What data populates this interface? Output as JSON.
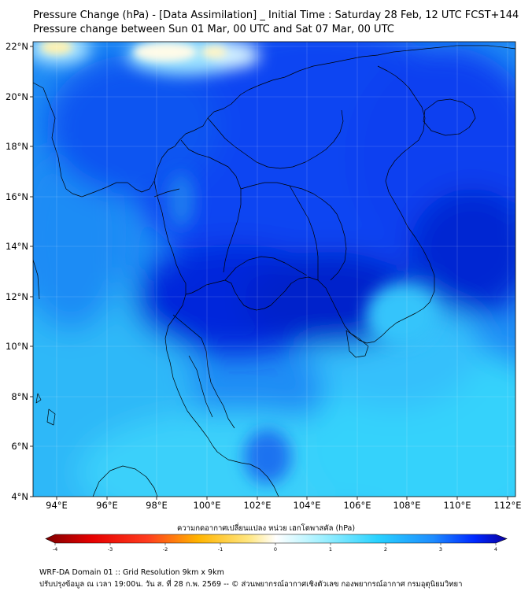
{
  "header": {
    "title_line1": "Pressure Change (hPa) - [Data Assimilation] _ Initial Time : Saturday 28 Feb, 12 UTC FCST+144",
    "title_line2": "Pressure change between Sun 01 Mar, 00 UTC and Sat 07 Mar, 00 UTC"
  },
  "map": {
    "lat_labels": [
      "22°N",
      "20°N",
      "18°N",
      "16°N",
      "14°N",
      "12°N",
      "10°N",
      "8°N",
      "6°N",
      "4°N"
    ],
    "lon_labels": [
      "94°E",
      "96°E",
      "98°E",
      "100°E",
      "102°E",
      "104°E",
      "106°E",
      "108°E",
      "110°E",
      "112°E"
    ]
  },
  "colorbar": {
    "title": "ความกดอากาศเปลี่ยนแปลง หน่วย เฮกโตพาสคัล (hPa)",
    "ticks": [
      "-4",
      "-3",
      "-2",
      "-1",
      "0",
      "1",
      "2",
      "3",
      "4"
    ],
    "colors": [
      "#7f0000",
      "#e60000",
      "#ff3c1e",
      "#ffb400",
      "#ffe680",
      "#ffffff",
      "#9ff0ff",
      "#28d2ff",
      "#1e8cff",
      "#0028ff",
      "#0a00a0"
    ]
  },
  "footer": {
    "line1": "WRF-DA Domain 01 :: Grid Resolution 9km x 9km",
    "line2": "ปรับปรุงข้อมูล ณ เวลา 19:00น. วัน ส. ที่ 28 ก.พ. 2569 -- © ส่วนพยากรณ์อากาศเชิงตัวเลข กองพยากรณ์อากาศ กรมอุตุนิยมวิทยา"
  }
}
